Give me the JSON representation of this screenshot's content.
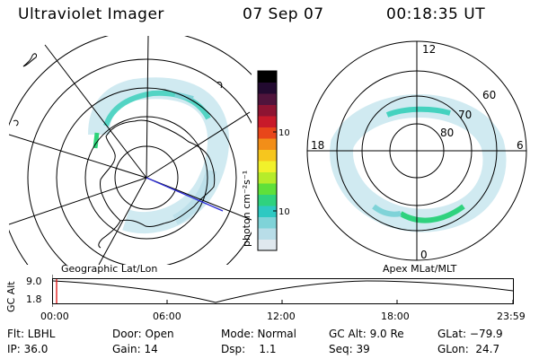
{
  "header": {
    "title": "Ultraviolet Imager",
    "date": "07 Sep 07",
    "time": "00:18:35 UT"
  },
  "left_map": {
    "caption": "Geographic Lat/Lon"
  },
  "right_map": {
    "caption": "Apex MLat/MLT",
    "mlt_labels": {
      "top": "12",
      "left": "18",
      "right": "6",
      "bottom": "0"
    },
    "mlat_labels": [
      "60",
      "70",
      "80"
    ]
  },
  "colorbar": {
    "unit_label": "photon cm⁻²s⁻¹",
    "ticks": [
      "100",
      "10"
    ],
    "tick_values": [
      100,
      10
    ],
    "scale": "log",
    "colors": [
      "#dfe8ee",
      "#b8dde8",
      "#7fd3d8",
      "#2ec9c2",
      "#2fd27e",
      "#5fe03a",
      "#b6ec2a",
      "#f1f12b",
      "#f6c61e",
      "#f28e18",
      "#e8461a",
      "#c81a2a",
      "#8e1432",
      "#50143c",
      "#220a30",
      "#000000"
    ]
  },
  "timeline": {
    "ylabel": "GC Alt",
    "y_ticks": [
      "9.0",
      "1.8"
    ],
    "x_ticks": [
      "00:00",
      "06:00",
      "12:00",
      "18:00",
      "23:59"
    ]
  },
  "info": {
    "row1": [
      "Flt: LBHL",
      "Door: Open",
      "Mode: Normal",
      "GC Alt: 9.0 Re",
      "GLat: −79.9"
    ],
    "row2": [
      "IP: 36.0",
      "Gain: 14",
      "Dsp:    1.1",
      "Seq: 39",
      "GLon:  24.7"
    ]
  }
}
